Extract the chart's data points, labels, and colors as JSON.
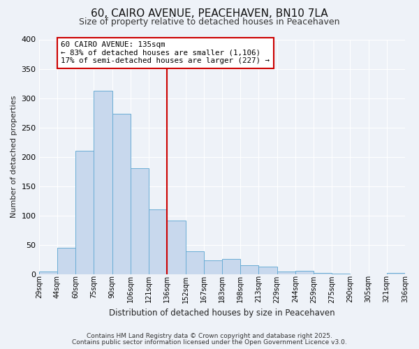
{
  "title": "60, CAIRO AVENUE, PEACEHAVEN, BN10 7LA",
  "subtitle": "Size of property relative to detached houses in Peacehaven",
  "xlabel": "Distribution of detached houses by size in Peacehaven",
  "ylabel": "Number of detached properties",
  "bin_labels": [
    "29sqm",
    "44sqm",
    "60sqm",
    "75sqm",
    "90sqm",
    "106sqm",
    "121sqm",
    "136sqm",
    "152sqm",
    "167sqm",
    "183sqm",
    "198sqm",
    "213sqm",
    "229sqm",
    "244sqm",
    "259sqm",
    "275sqm",
    "290sqm",
    "305sqm",
    "321sqm",
    "336sqm"
  ],
  "bin_values": [
    5,
    45,
    210,
    312,
    273,
    180,
    110,
    91,
    39,
    23,
    26,
    15,
    13,
    5,
    6,
    2,
    1,
    0,
    0,
    2
  ],
  "bar_color": "#c8d8ed",
  "bar_edge_color": "#6aadd5",
  "vline_color": "#cc0000",
  "annotation_title": "60 CAIRO AVENUE: 135sqm",
  "annotation_line1": "← 83% of detached houses are smaller (1,106)",
  "annotation_line2": "17% of semi-detached houses are larger (227) →",
  "annotation_box_color": "#ffffff",
  "annotation_box_edge": "#cc0000",
  "ylim": [
    0,
    400
  ],
  "yticks": [
    0,
    50,
    100,
    150,
    200,
    250,
    300,
    350,
    400
  ],
  "footer1": "Contains HM Land Registry data © Crown copyright and database right 2025.",
  "footer2": "Contains public sector information licensed under the Open Government Licence v3.0.",
  "bg_color": "#eef2f8",
  "plot_bg_color": "#eef2f8",
  "grid_color": "#ffffff",
  "title_fontsize": 11,
  "subtitle_fontsize": 9
}
